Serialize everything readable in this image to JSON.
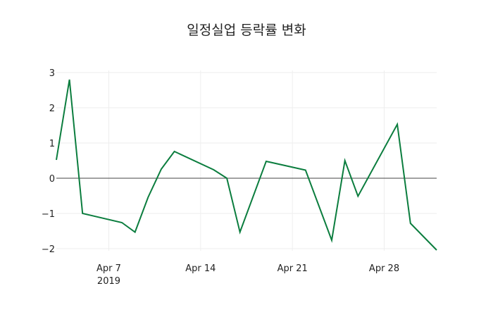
{
  "chart_data": {
    "type": "line",
    "title": "일정실업 등락률 변화",
    "xlabel": "",
    "ylabel": "",
    "x": [
      "2019-04-03",
      "2019-04-04",
      "2019-04-05",
      "2019-04-08",
      "2019-04-09",
      "2019-04-10",
      "2019-04-11",
      "2019-04-12",
      "2019-04-15",
      "2019-04-16",
      "2019-04-17",
      "2019-04-19",
      "2019-04-22",
      "2019-04-24",
      "2019-04-25",
      "2019-04-26",
      "2019-04-29",
      "2019-04-30",
      "2019-05-02"
    ],
    "series": [
      {
        "name": "등락률",
        "color": "#0b7d3e",
        "values": [
          0.52,
          2.8,
          -1.0,
          -1.26,
          -1.53,
          -0.54,
          0.26,
          0.76,
          0.24,
          0.0,
          -1.53,
          0.48,
          0.23,
          -1.76,
          0.5,
          -0.51,
          1.53,
          -1.28,
          -2.04
        ]
      }
    ],
    "x_ticks": [
      {
        "date": "2019-04-07",
        "label": "Apr 7",
        "sublabel": "2019"
      },
      {
        "date": "2019-04-14",
        "label": "Apr 14",
        "sublabel": ""
      },
      {
        "date": "2019-04-21",
        "label": "Apr 21",
        "sublabel": ""
      },
      {
        "date": "2019-04-28",
        "label": "Apr 28",
        "sublabel": ""
      }
    ],
    "y_ticks": [
      3,
      2,
      1,
      0,
      -1,
      -2
    ],
    "y_tick_labels": [
      "3",
      "2",
      "1",
      "0",
      "−1",
      "−2"
    ],
    "xlim": [
      "2019-04-03",
      "2019-05-02"
    ],
    "ylim": [
      -2.05,
      3.0
    ],
    "grid": true,
    "legend": "none"
  }
}
